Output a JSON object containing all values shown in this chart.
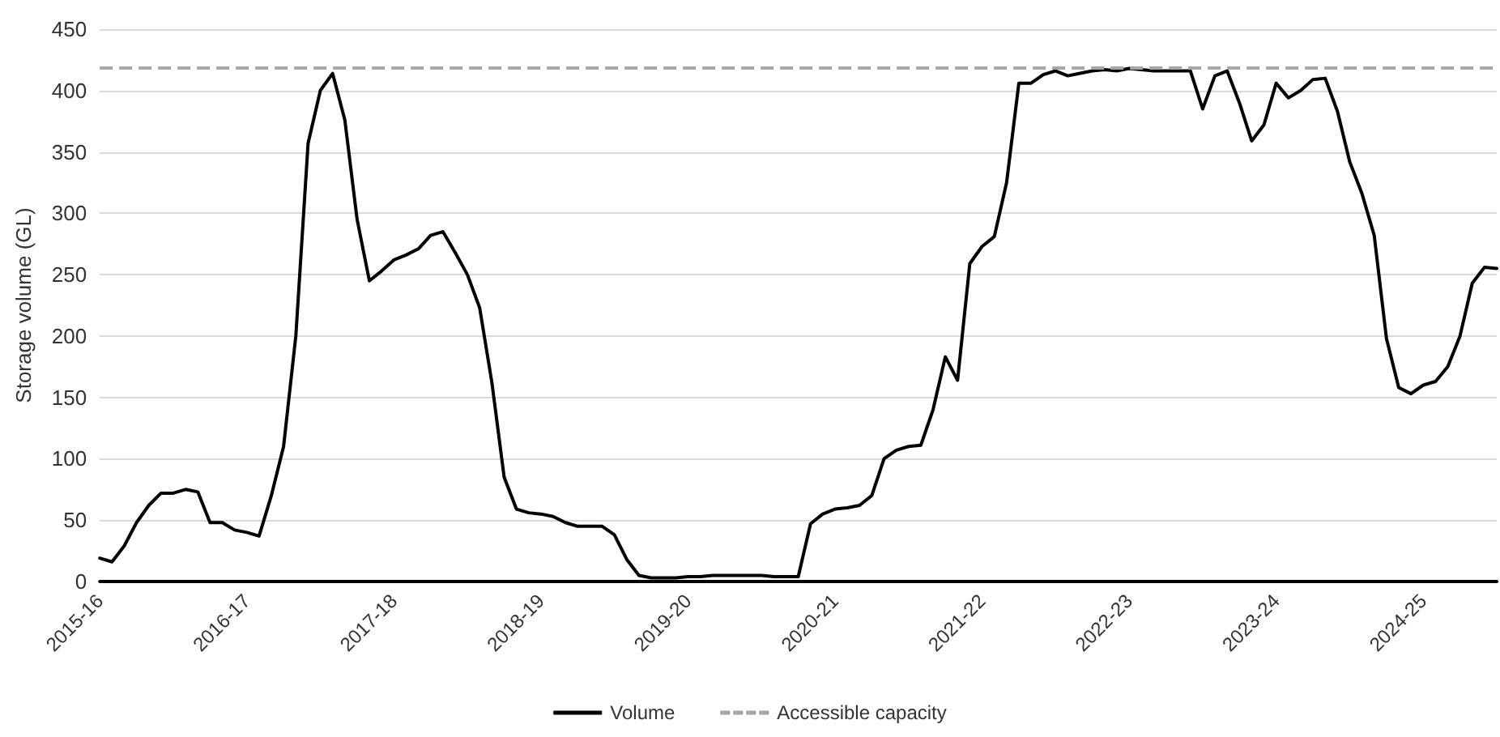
{
  "chart_data": {
    "type": "line",
    "ylabel": "Storage volume (GL)",
    "categories": [
      "2015-16",
      null,
      null,
      null,
      null,
      null,
      null,
      null,
      null,
      null,
      null,
      null,
      "2016-17",
      null,
      null,
      null,
      null,
      null,
      null,
      null,
      null,
      null,
      null,
      null,
      "2017-18",
      null,
      null,
      null,
      null,
      null,
      null,
      null,
      null,
      null,
      null,
      null,
      "2018-19",
      null,
      null,
      null,
      null,
      null,
      null,
      null,
      null,
      null,
      null,
      null,
      "2019-20",
      null,
      null,
      null,
      null,
      null,
      null,
      null,
      null,
      null,
      null,
      null,
      "2020-21",
      null,
      null,
      null,
      null,
      null,
      null,
      null,
      null,
      null,
      null,
      null,
      "2021-22",
      null,
      null,
      null,
      null,
      null,
      null,
      null,
      null,
      null,
      null,
      null,
      "2022-23",
      null,
      null,
      null,
      null,
      null,
      null,
      null,
      null,
      null,
      null,
      null,
      "2023-24",
      null,
      null,
      null,
      null,
      null,
      null,
      null,
      null,
      null,
      null,
      null,
      "2024-25",
      null,
      null,
      null,
      null,
      null,
      null
    ],
    "series": [
      {
        "name": "Volume",
        "color": "#000000",
        "values": [
          19,
          16,
          29,
          48,
          62,
          72,
          72,
          75,
          73,
          48,
          48,
          42,
          40,
          37,
          70,
          110,
          200,
          357,
          400,
          414,
          376,
          295,
          245,
          253,
          262,
          266,
          271,
          282,
          285,
          268,
          250,
          223,
          162,
          85,
          59,
          56,
          55,
          53,
          48,
          45,
          45,
          45,
          38,
          18,
          5,
          3,
          3,
          3,
          4,
          4,
          5,
          5,
          5,
          5,
          5,
          4,
          4,
          4,
          47,
          55,
          59,
          60,
          62,
          70,
          100,
          107,
          110,
          111,
          140,
          183,
          164,
          259,
          273,
          281,
          325,
          406,
          406,
          413,
          416,
          412,
          414,
          416,
          417,
          416,
          418,
          417,
          416,
          416,
          416,
          416,
          385,
          412,
          416,
          390,
          359,
          372,
          406,
          394,
          400,
          409,
          410,
          383,
          342,
          316,
          282,
          198,
          158,
          153,
          160,
          163,
          175,
          200,
          243,
          256,
          255
        ]
      }
    ],
    "ref_lines": [
      {
        "axis": "y",
        "value": 418,
        "label": "Accessible capacity",
        "color": "#a6a6a6",
        "line_style": "dashed"
      }
    ],
    "ylim": [
      0,
      450
    ],
    "yticks": [
      0,
      50,
      100,
      150,
      200,
      250,
      300,
      350,
      400,
      450
    ],
    "grid": "y",
    "legend": "bottom",
    "marker": "none",
    "line_style": "solid"
  }
}
